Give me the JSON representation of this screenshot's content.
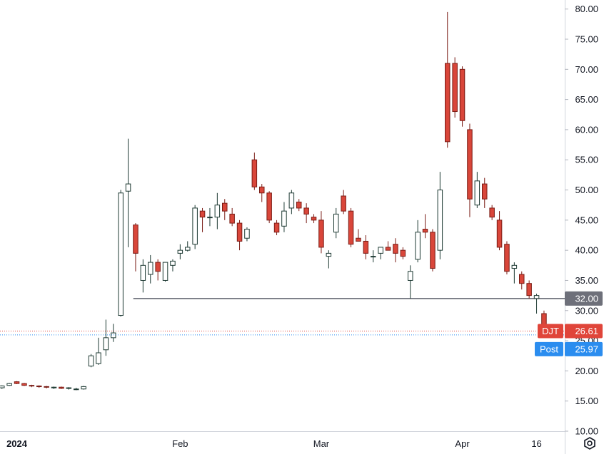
{
  "colors": {
    "up": "#ffffff",
    "up_border": "#1f3b34",
    "down": "#d9463a",
    "down_border": "#7a1d16",
    "wick": "#3b3b3b",
    "grid_axis": "#787b86",
    "level_line": "#5d606b",
    "last_tag": "#e0453a",
    "post_tag": "#2b8def",
    "level_tag": "#6e707a"
  },
  "icons": {
    "settings": "settings-gear-icon"
  },
  "chart_data": {
    "type": "candlestick",
    "symbol": "DJT",
    "ylim": [
      10,
      81.5
    ],
    "y_ticks": [
      "80.00",
      "75.00",
      "70.00",
      "65.00",
      "60.00",
      "55.00",
      "50.00",
      "45.00",
      "40.00",
      "35.00",
      "30.00",
      "25.00",
      "20.00",
      "15.00",
      "10.00"
    ],
    "x_ticks": [
      {
        "label": "2024",
        "bar": 2,
        "bold": true
      },
      {
        "label": "Feb",
        "bar": 24,
        "bold": false
      },
      {
        "label": "Mar",
        "bar": 43,
        "bold": false
      },
      {
        "label": "Apr",
        "bar": 62,
        "bold": false
      },
      {
        "label": "16",
        "bar": 72,
        "bold": false
      }
    ],
    "horizontal_line": {
      "value": 32.0,
      "label": "32.00",
      "from_bar": 18
    },
    "last_price": {
      "label": "DJT",
      "value": 26.61
    },
    "post_price": {
      "label": "Post",
      "value": 25.97
    },
    "candles": [
      [
        17.2,
        17.6,
        17.0,
        17.5
      ],
      [
        17.6,
        18.0,
        17.5,
        17.9
      ],
      [
        18.2,
        18.3,
        17.8,
        17.9
      ],
      [
        17.9,
        18.0,
        17.5,
        17.6
      ],
      [
        17.6,
        17.7,
        17.3,
        17.5
      ],
      [
        17.5,
        17.6,
        17.2,
        17.4
      ],
      [
        17.4,
        17.5,
        17.1,
        17.3
      ],
      [
        17.2,
        17.4,
        17.0,
        17.3
      ],
      [
        17.3,
        17.4,
        17.0,
        17.1
      ],
      [
        17.1,
        17.3,
        16.9,
        17.2
      ],
      [
        17.0,
        17.2,
        16.8,
        17.0
      ],
      [
        17.0,
        17.5,
        16.9,
        17.4
      ],
      [
        20.8,
        22.8,
        20.6,
        22.5
      ],
      [
        21.2,
        25.5,
        21.0,
        23.0
      ],
      [
        23.5,
        28.5,
        22.5,
        25.5
      ],
      [
        25.5,
        27.8,
        24.8,
        26.3
      ],
      [
        29.2,
        50.0,
        29.0,
        49.5
      ],
      [
        49.8,
        58.5,
        40.5,
        51.0
      ],
      [
        44.2,
        44.5,
        36.5,
        39.5
      ],
      [
        35.0,
        38.5,
        33.0,
        37.5
      ],
      [
        36.0,
        39.2,
        34.5,
        38.0
      ],
      [
        38.0,
        38.5,
        35.0,
        36.5
      ],
      [
        35.0,
        38.0,
        34.8,
        38.0
      ],
      [
        37.5,
        38.5,
        36.5,
        38.2
      ],
      [
        39.5,
        41.0,
        38.5,
        40.0
      ],
      [
        40.0,
        41.5,
        39.8,
        40.5
      ],
      [
        41.0,
        47.5,
        40.2,
        47.0
      ],
      [
        46.5,
        47.0,
        43.0,
        45.5
      ],
      [
        45.5,
        47.0,
        44.0,
        45.5
      ],
      [
        45.5,
        49.5,
        43.5,
        47.5
      ],
      [
        47.8,
        48.5,
        45.0,
        46.5
      ],
      [
        46.0,
        47.0,
        44.0,
        44.5
      ],
      [
        44.5,
        45.0,
        40.0,
        41.5
      ],
      [
        42.0,
        43.8,
        41.5,
        43.5
      ],
      [
        55.0,
        56.2,
        50.0,
        50.5
      ],
      [
        50.5,
        51.0,
        48.0,
        49.5
      ],
      [
        49.5,
        49.8,
        44.5,
        45.0
      ],
      [
        44.5,
        45.0,
        42.5,
        43.0
      ],
      [
        44.0,
        48.0,
        43.0,
        46.5
      ],
      [
        47.0,
        50.0,
        46.0,
        49.5
      ],
      [
        48.0,
        48.5,
        46.5,
        47.0
      ],
      [
        47.0,
        47.8,
        44.5,
        46.0
      ],
      [
        45.5,
        46.0,
        44.5,
        45.0
      ],
      [
        45.0,
        46.5,
        39.5,
        40.5
      ],
      [
        39.0,
        40.0,
        37.0,
        39.5
      ],
      [
        43.0,
        47.0,
        42.0,
        46.0
      ],
      [
        49.0,
        50.0,
        46.0,
        46.5
      ],
      [
        46.5,
        47.0,
        40.5,
        41.0
      ],
      [
        42.0,
        43.5,
        41.5,
        41.5
      ],
      [
        41.5,
        42.5,
        38.5,
        39.5
      ],
      [
        39.0,
        40.0,
        38.0,
        39.0
      ],
      [
        39.5,
        40.5,
        38.5,
        40.5
      ],
      [
        40.5,
        41.5,
        40.0,
        40.0
      ],
      [
        41.0,
        42.0,
        38.0,
        39.5
      ],
      [
        40.0,
        40.5,
        38.5,
        39.0
      ],
      [
        35.0,
        37.5,
        32.0,
        36.5
      ],
      [
        38.5,
        45.0,
        38.0,
        43.0
      ],
      [
        43.5,
        46.0,
        42.0,
        43.0
      ],
      [
        43.0,
        43.5,
        36.5,
        37.0
      ],
      [
        40.0,
        53.0,
        38.5,
        50.0
      ],
      [
        71.0,
        79.5,
        57.0,
        58.0
      ],
      [
        71.0,
        72.0,
        62.0,
        63.0
      ],
      [
        70.0,
        70.5,
        60.5,
        61.5
      ],
      [
        60.0,
        61.0,
        45.5,
        48.5
      ],
      [
        47.5,
        53.0,
        47.0,
        51.5
      ],
      [
        51.0,
        52.0,
        47.0,
        48.5
      ],
      [
        47.0,
        47.5,
        45.0,
        45.5
      ],
      [
        45.0,
        46.5,
        40.0,
        40.5
      ],
      [
        41.0,
        41.5,
        36.0,
        36.5
      ],
      [
        37.0,
        38.0,
        34.5,
        37.5
      ],
      [
        36.0,
        36.5,
        33.5,
        34.5
      ],
      [
        34.5,
        35.0,
        32.0,
        32.5
      ],
      [
        32.0,
        32.8,
        29.5,
        32.5
      ],
      [
        29.5,
        30.0,
        25.8,
        26.6
      ]
    ]
  }
}
